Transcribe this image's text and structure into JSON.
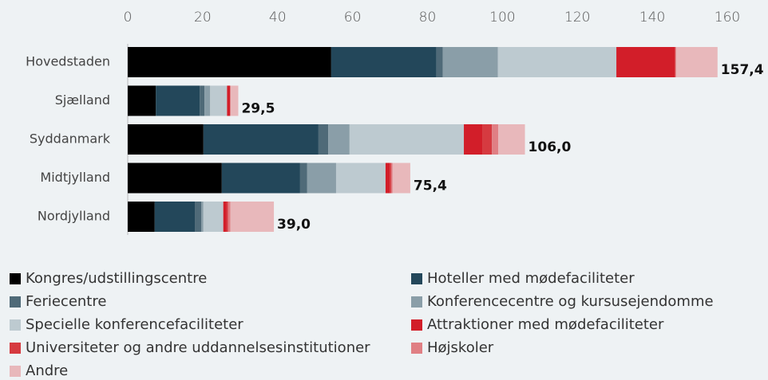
{
  "chart_data": {
    "type": "stacked_barh",
    "categories": [
      "Hovedstaden",
      "Sjælland",
      "Syddanmark",
      "Midtjylland",
      "Nordjylland"
    ],
    "series": [
      {
        "name": "Kongres/udstillingscentre",
        "color": "#000000",
        "values": [
          54.3,
          7.5,
          20.2,
          25.1,
          7.2
        ]
      },
      {
        "name": "Hoteller med mødefaciliteter",
        "color": "#23475a",
        "values": [
          28.1,
          11.7,
          30.7,
          20.9,
          10.7
        ]
      },
      {
        "name": "Feriecentre",
        "color": "#4f6a78",
        "values": [
          1.7,
          1.3,
          2.6,
          1.9,
          1.7
        ]
      },
      {
        "name": "Konferencecentre og kursusejendomme",
        "color": "#8a9ea8",
        "values": [
          14.7,
          1.5,
          5.7,
          7.7,
          0.6
        ]
      },
      {
        "name": "Specielle konferencefaciliteter",
        "color": "#bdcad0",
        "values": [
          31.6,
          4.5,
          30.5,
          13.2,
          5.3
        ]
      },
      {
        "name": "Attraktioner med mødefaciliteter",
        "color": "#d21e29",
        "values": [
          15.6,
          0.8,
          4.9,
          1.1,
          0.9
        ]
      },
      {
        "name": "Universiteter og andre uddannelsesinstitutioner",
        "color": "#d63a40",
        "values": [
          0.2,
          0,
          2.6,
          0.4,
          0.4
        ]
      },
      {
        "name": "Højskoler",
        "color": "#e07f84",
        "values": [
          0.2,
          0.2,
          1.7,
          0.4,
          0.6
        ]
      },
      {
        "name": "Andre",
        "color": "#e8b8bb",
        "values": [
          11.0,
          2.0,
          7.1,
          4.7,
          11.6
        ]
      }
    ],
    "totals": [
      157.4,
      29.5,
      106.0,
      75.4,
      39.0
    ],
    "total_labels": [
      "157,4",
      "29,5",
      "106,0",
      "75,4",
      "39,0"
    ],
    "xlim": [
      0,
      160
    ],
    "xticks": [
      0,
      20,
      40,
      60,
      80,
      100,
      120,
      140,
      160
    ]
  }
}
